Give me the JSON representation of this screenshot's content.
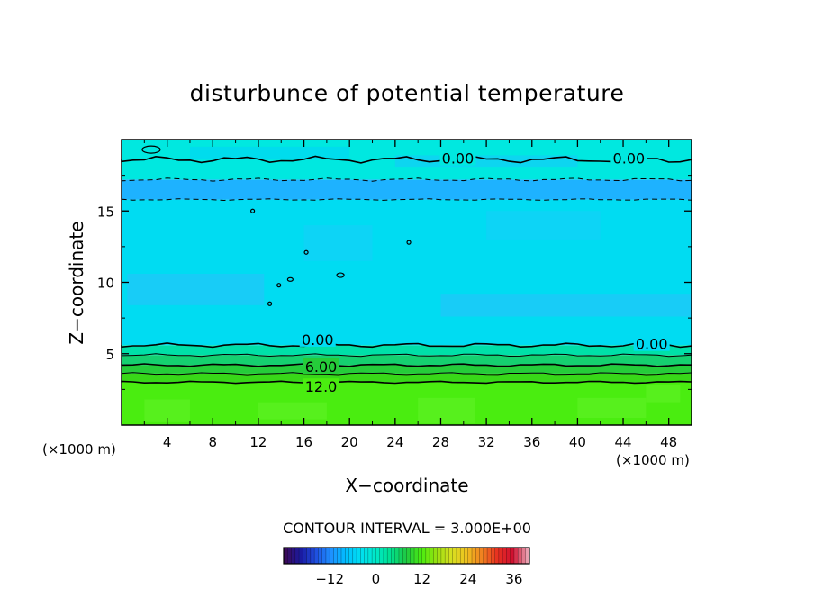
{
  "chart_data": {
    "type": "heatmap",
    "title": "disturbunce of potential temperature",
    "xlabel": "X−coordinate",
    "ylabel": "Z−coordinate",
    "x_unit_left": "(×1000 m)",
    "x_unit_right": "(×1000 m)",
    "xlim": [
      0,
      50
    ],
    "ylim": [
      0,
      20
    ],
    "x_ticks": [
      4,
      8,
      12,
      16,
      20,
      24,
      28,
      32,
      36,
      40,
      44,
      48
    ],
    "y_ticks": [
      5,
      10,
      15
    ],
    "contour_interval_text": "CONTOUR INTERVAL = 3.000E+00",
    "colorbar": {
      "range": [
        -24,
        40
      ],
      "ticks": [
        -12,
        0,
        12,
        24,
        36
      ],
      "colors": [
        "#3a0a5a",
        "#1a1aa0",
        "#1f4fe0",
        "#1e90ff",
        "#00bfff",
        "#00e0f0",
        "#00e8c8",
        "#00e08c",
        "#20c840",
        "#4aed10",
        "#9ae010",
        "#d8e020",
        "#f0c020",
        "#f08020",
        "#e83020",
        "#d01030",
        "#e8a0b0"
      ]
    },
    "bands": [
      {
        "z_range": [
          0,
          3
        ],
        "value": 15,
        "color": "#4aed10"
      },
      {
        "z_range": [
          3,
          3.6
        ],
        "value": 12,
        "color": "#38d818"
      },
      {
        "z_range": [
          3.6,
          4.2
        ],
        "value": 9,
        "color": "#25cc3a"
      },
      {
        "z_range": [
          4.2,
          4.9
        ],
        "value": 6,
        "color": "#15d070"
      },
      {
        "z_range": [
          4.9,
          5.6
        ],
        "value": 3,
        "color": "#00e0a8"
      },
      {
        "z_range": [
          5.6,
          15.8
        ],
        "value": -1.5,
        "color": "#00dcf2"
      },
      {
        "z_range": [
          15.8,
          17.2
        ],
        "value": -3,
        "color": "#1eb2ff"
      },
      {
        "z_range": [
          17.2,
          20
        ],
        "value": 0.5,
        "color": "#00e8e0"
      }
    ],
    "contour_labels": [
      {
        "text": "0.00",
        "x": 29.5,
        "z": 18.7
      },
      {
        "text": "0.00",
        "x": 44.5,
        "z": 18.7
      },
      {
        "text": "0.00",
        "x": 17.2,
        "z": 6.0
      },
      {
        "text": "0.00",
        "x": 46.5,
        "z": 5.7
      },
      {
        "text": "6.00",
        "x": 17.5,
        "z": 4.1
      },
      {
        "text": "12.0",
        "x": 17.5,
        "z": 2.7
      }
    ]
  }
}
